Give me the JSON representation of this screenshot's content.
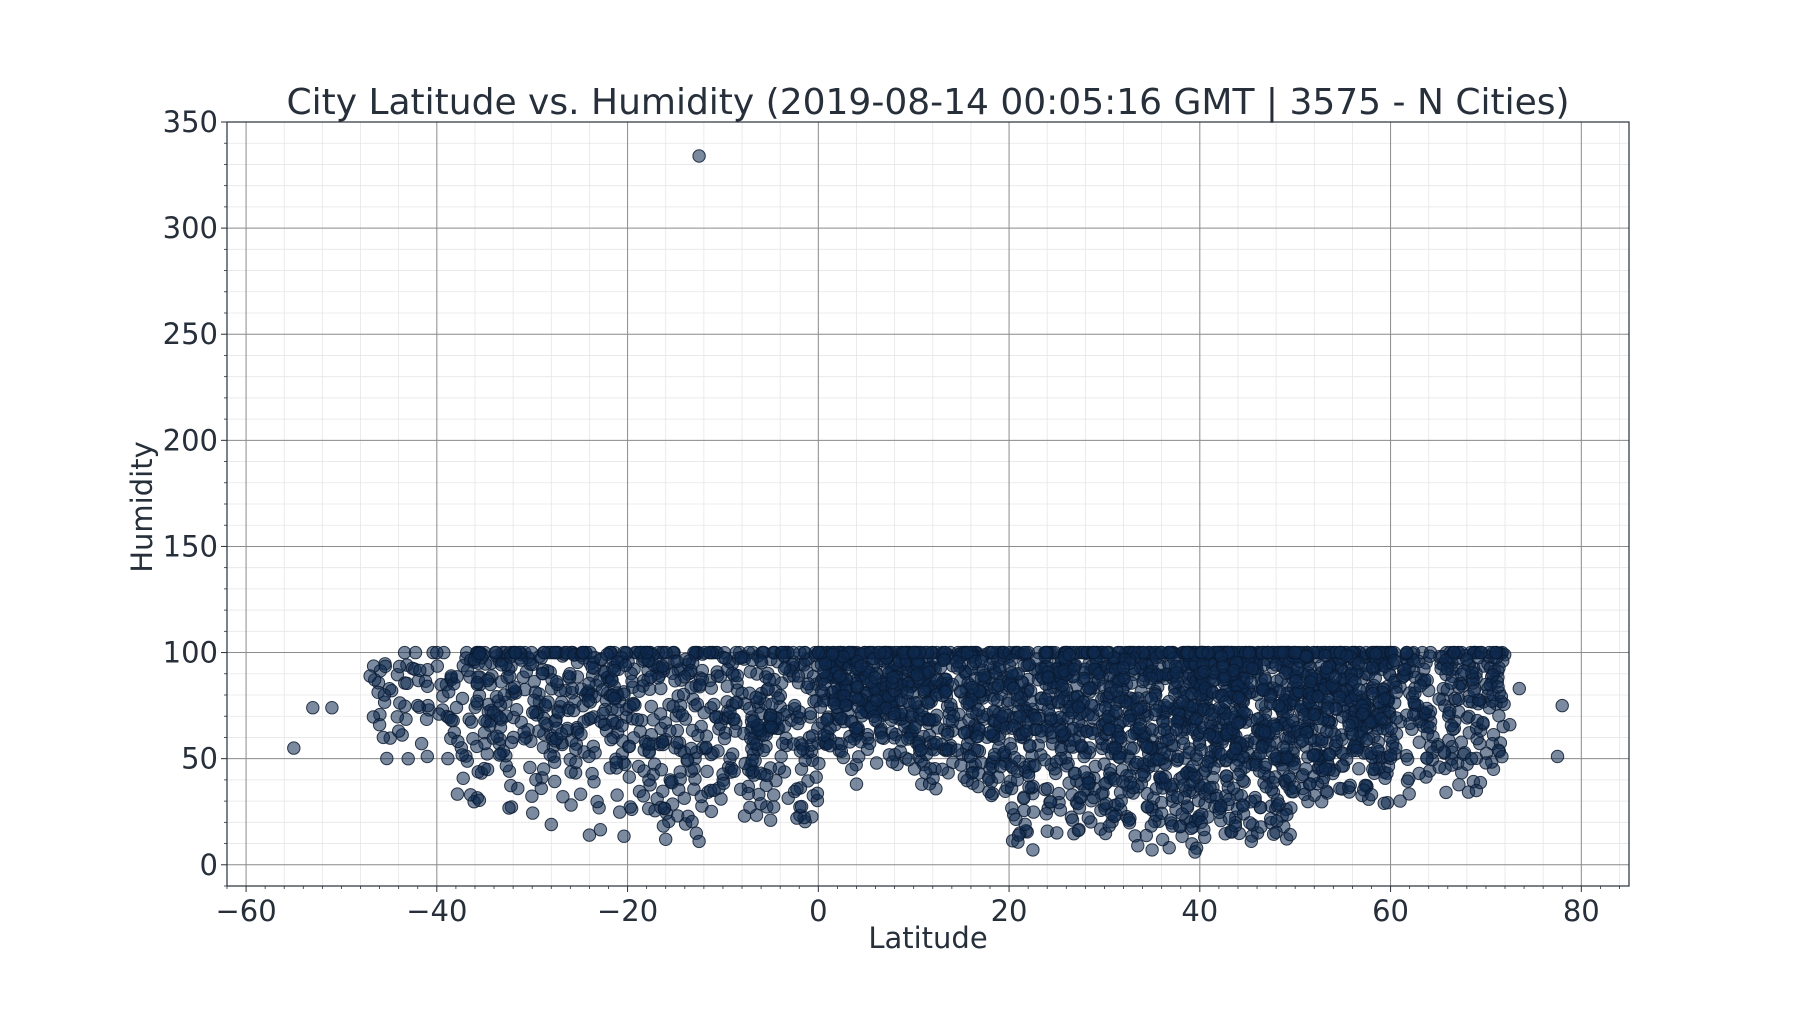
{
  "chart_data": {
    "type": "scatter",
    "title": "City Latitude vs. Humidity (2019-08-14 00:05:16 GMT | 3575 - N Cities)",
    "xlabel": "Latitude",
    "ylabel": "Humidity",
    "xlim": [
      -62,
      85
    ],
    "ylim": [
      -10,
      350
    ],
    "xticks": [
      -60,
      -40,
      -20,
      0,
      20,
      40,
      60,
      80
    ],
    "xtick_labels": [
      "−60",
      "−40",
      "−20",
      "0",
      "20",
      "40",
      "60",
      "80"
    ],
    "yticks": [
      0,
      50,
      100,
      150,
      200,
      250,
      300,
      350
    ],
    "ytick_labels": [
      "0",
      "50",
      "100",
      "150",
      "200",
      "250",
      "300",
      "350"
    ],
    "grid": true,
    "minor_grid": true,
    "legend": "none",
    "marker_color": "#0e2a4f",
    "marker_edge_color": "#0a1a30",
    "marker_alpha": 0.55,
    "points_count": 3575,
    "sample_points": [
      {
        "x": -12.5,
        "y": 334
      },
      {
        "x": -55,
        "y": 55
      },
      {
        "x": -53,
        "y": 74
      },
      {
        "x": -51,
        "y": 74
      },
      {
        "x": 78,
        "y": 75
      },
      {
        "x": 77.5,
        "y": 51
      },
      {
        "x": 73.5,
        "y": 83
      },
      {
        "x": 72.5,
        "y": 66
      },
      {
        "x": -12.5,
        "y": 11
      },
      {
        "x": -16,
        "y": 12
      },
      {
        "x": 22.5,
        "y": 7
      },
      {
        "x": 39.5,
        "y": 6
      },
      {
        "x": 35,
        "y": 7
      },
      {
        "x": 33.5,
        "y": 9
      },
      {
        "x": -24,
        "y": 14
      },
      {
        "x": 4,
        "y": 38
      },
      {
        "x": 3.5,
        "y": 45
      },
      {
        "x": -46,
        "y": 66
      },
      {
        "x": -45.5,
        "y": 80
      },
      {
        "x": -44,
        "y": 63
      },
      {
        "x": -43,
        "y": 50
      },
      {
        "x": -42,
        "y": 75
      },
      {
        "x": -40,
        "y": 100
      },
      {
        "x": -41,
        "y": 51
      },
      {
        "x": 70,
        "y": 48
      },
      {
        "x": 69,
        "y": 35
      },
      {
        "x": 68.5,
        "y": 50
      },
      {
        "x": 61,
        "y": 30
      },
      {
        "x": 58,
        "y": 33
      },
      {
        "x": 13,
        "y": 45
      },
      {
        "x": 21,
        "y": 14
      },
      {
        "x": 25,
        "y": 15
      },
      {
        "x": -5,
        "y": 21
      },
      {
        "x": -28,
        "y": 19
      },
      {
        "x": 10,
        "y": 100
      },
      {
        "x": 0,
        "y": 100
      },
      {
        "x": 50,
        "y": 100
      }
    ],
    "density_bands": [
      {
        "lat_range": [
          -47,
          -38
        ],
        "humidity_range": [
          45,
          95
        ],
        "count": 60
      },
      {
        "lat_range": [
          -38,
          -25
        ],
        "humidity_range": [
          20,
          100
        ],
        "count": 240
      },
      {
        "lat_range": [
          -25,
          -10
        ],
        "humidity_range": [
          12,
          100
        ],
        "count": 320
      },
      {
        "lat_range": [
          -10,
          0
        ],
        "humidity_range": [
          20,
          100
        ],
        "count": 230
      },
      {
        "lat_range": [
          0,
          10
        ],
        "humidity_range": [
          45,
          100
        ],
        "count": 360
      },
      {
        "lat_range": [
          10,
          20
        ],
        "humidity_range": [
          30,
          100
        ],
        "count": 330
      },
      {
        "lat_range": [
          20,
          30
        ],
        "humidity_range": [
          10,
          100
        ],
        "count": 370
      },
      {
        "lat_range": [
          30,
          40
        ],
        "humidity_range": [
          6,
          100
        ],
        "count": 460
      },
      {
        "lat_range": [
          40,
          50
        ],
        "humidity_range": [
          10,
          100
        ],
        "count": 530
      },
      {
        "lat_range": [
          50,
          60
        ],
        "humidity_range": [
          28,
          100
        ],
        "count": 420
      },
      {
        "lat_range": [
          60,
          72
        ],
        "humidity_range": [
          30,
          100
        ],
        "count": 250
      }
    ]
  }
}
